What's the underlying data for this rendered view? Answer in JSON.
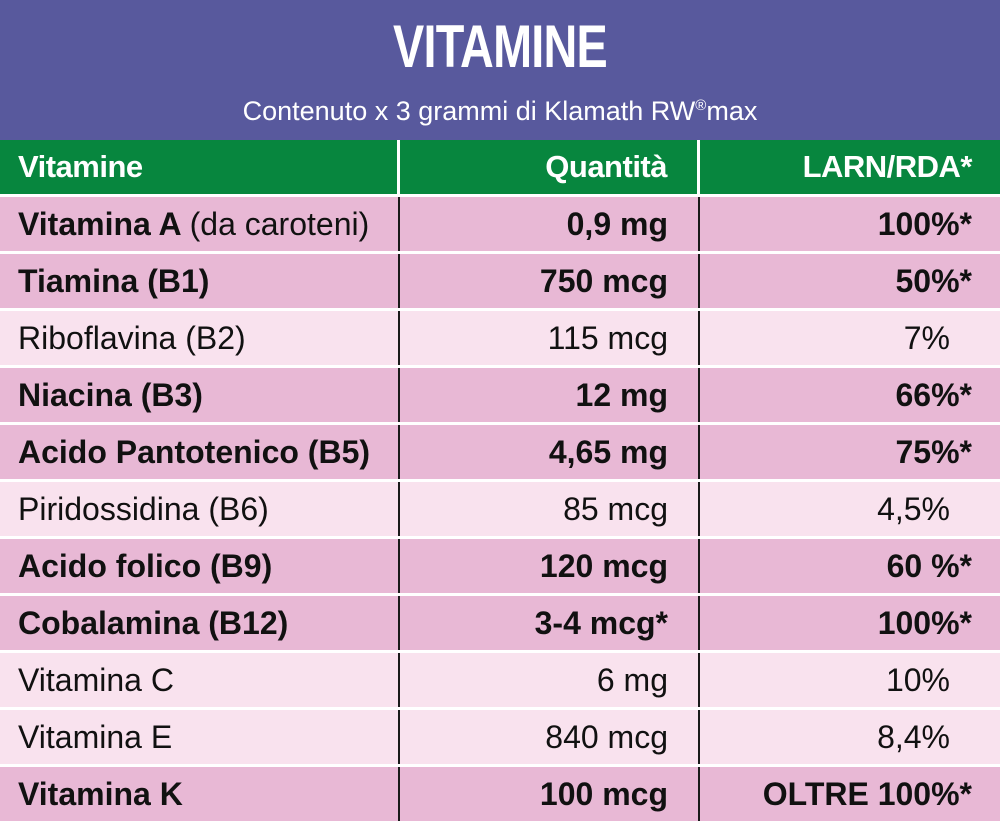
{
  "header": {
    "title": "VITAMINE",
    "subtitle_before": "Contenuto x 3 grammi di Klamath RW",
    "subtitle_mark": "®",
    "subtitle_after": "max"
  },
  "table": {
    "columns": [
      "Vitamine",
      "Quantità",
      "LARN/RDA*"
    ],
    "rows": [
      {
        "name": "Vitamina A",
        "note": "(da caroteni)",
        "quantity": "0,9 mg",
        "larn": "100%*",
        "emphasis": "bold"
      },
      {
        "name": "Tiamina (B1)",
        "note": "",
        "quantity": "750 mcg",
        "larn": "50%*",
        "emphasis": "bold"
      },
      {
        "name": "Riboflavina (B2)",
        "note": "",
        "quantity": "115 mcg",
        "larn": "7%",
        "emphasis": "normal"
      },
      {
        "name": "Niacina (B3)",
        "note": "",
        "quantity": "12 mg",
        "larn": "66%*",
        "emphasis": "bold"
      },
      {
        "name": "Acido Pantotenico (B5)",
        "note": "",
        "quantity": "4,65 mg",
        "larn": "75%*",
        "emphasis": "bold"
      },
      {
        "name": "Piridossidina (B6)",
        "note": "",
        "quantity": "85 mcg",
        "larn": "4,5%",
        "emphasis": "normal"
      },
      {
        "name": "Acido folico (B9)",
        "note": "",
        "quantity": "120 mcg",
        "larn": "60 %*",
        "emphasis": "bold"
      },
      {
        "name": "Cobalamina (B12)",
        "note": "",
        "quantity": "3-4 mcg*",
        "larn": "100%*",
        "emphasis": "bold"
      },
      {
        "name": "Vitamina C",
        "note": "",
        "quantity": "6 mg",
        "larn": "10%",
        "emphasis": "normal"
      },
      {
        "name": "Vitamina E",
        "note": "",
        "quantity": "840 mcg",
        "larn": "8,4%",
        "emphasis": "normal"
      },
      {
        "name": "Vitamina K",
        "note": "",
        "quantity": "100 mcg",
        "larn": "OLTRE 100%*",
        "emphasis": "bold"
      }
    ]
  },
  "colors": {
    "header_bg": "#58599d",
    "column_header_bg": "#07863e",
    "bold_row_bg": "#e8b8d5",
    "light_row_bg": "#f9e2ee"
  }
}
